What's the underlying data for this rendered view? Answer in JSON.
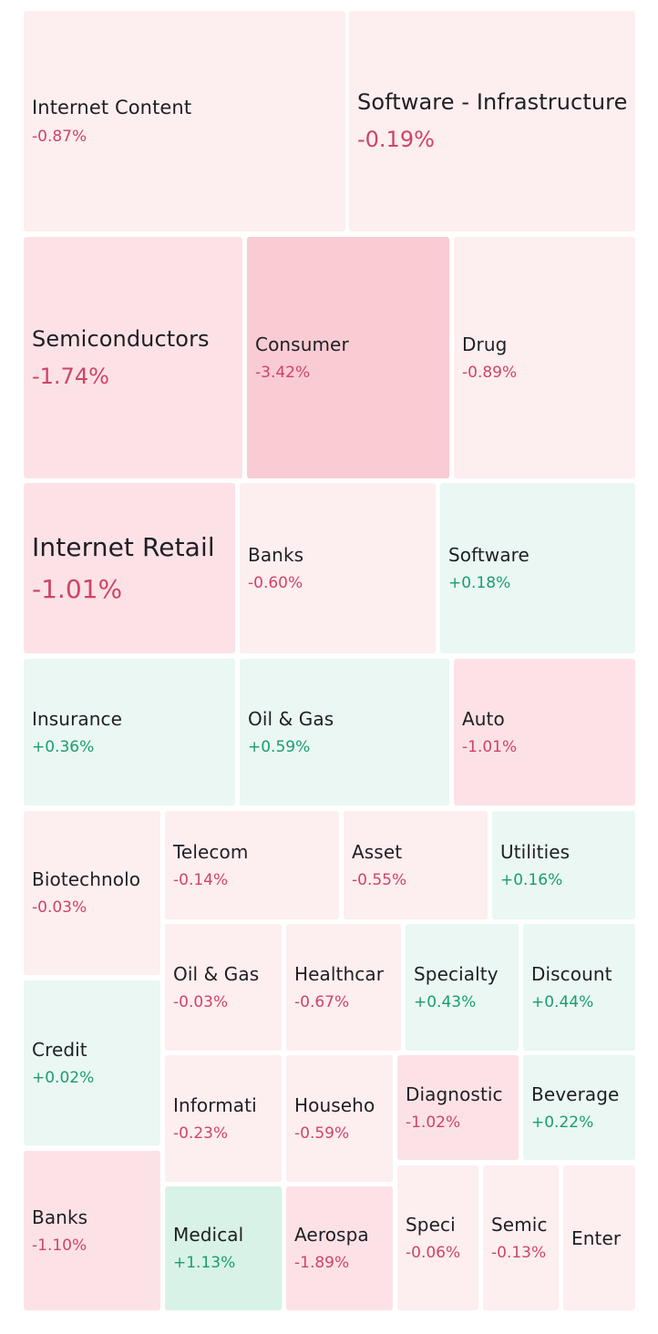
{
  "colors": {
    "neg_light": "#fdeef0",
    "neg_mid": "#fce2e6",
    "neg_strong": "#f9cbd3",
    "pos_light": "#eaf7f2",
    "pos_strong": "#d8f2e7",
    "neg_text": "#cf4466",
    "pos_text": "#1a9d6e"
  },
  "tiles": [
    {
      "label": "Internet Content",
      "change": "-0.87%",
      "trend": "negative",
      "shade": "neg_light"
    },
    {
      "label": "Software - Infrastructure",
      "change": "-0.19%",
      "trend": "negative",
      "shade": "neg_light"
    },
    {
      "label": "Semiconductors",
      "change": "-1.74%",
      "trend": "negative",
      "shade": "neg_mid"
    },
    {
      "label": "Consumer",
      "change": "-3.42%",
      "trend": "negative",
      "shade": "neg_strong"
    },
    {
      "label": "Drug",
      "change": "-0.89%",
      "trend": "negative",
      "shade": "neg_light"
    },
    {
      "label": "Internet Retail",
      "change": "-1.01%",
      "trend": "negative",
      "shade": "neg_mid"
    },
    {
      "label": "Banks",
      "change": "-0.60%",
      "trend": "negative",
      "shade": "neg_light"
    },
    {
      "label": "Software",
      "change": "+0.18%",
      "trend": "positive",
      "shade": "pos_light"
    },
    {
      "label": "Insurance",
      "change": "+0.36%",
      "trend": "positive",
      "shade": "pos_light"
    },
    {
      "label": "Oil & Gas",
      "change": "+0.59%",
      "trend": "positive",
      "shade": "pos_light"
    },
    {
      "label": "Auto",
      "change": "-1.01%",
      "trend": "negative",
      "shade": "neg_mid"
    },
    {
      "label": "Biotechnolo",
      "change": "-0.03%",
      "trend": "negative",
      "shade": "neg_light"
    },
    {
      "label": "Telecom",
      "change": "-0.14%",
      "trend": "negative",
      "shade": "neg_light"
    },
    {
      "label": "Asset",
      "change": "-0.55%",
      "trend": "negative",
      "shade": "neg_light"
    },
    {
      "label": "Utilities",
      "change": "+0.16%",
      "trend": "positive",
      "shade": "pos_light"
    },
    {
      "label": "Oil & Gas",
      "change": "-0.03%",
      "trend": "negative",
      "shade": "neg_light"
    },
    {
      "label": "Healthcar",
      "change": "-0.67%",
      "trend": "negative",
      "shade": "neg_light"
    },
    {
      "label": "Specialty",
      "change": "+0.43%",
      "trend": "positive",
      "shade": "pos_light"
    },
    {
      "label": "Discount",
      "change": "+0.44%",
      "trend": "positive",
      "shade": "pos_light"
    },
    {
      "label": "Credit",
      "change": "+0.02%",
      "trend": "positive",
      "shade": "pos_light"
    },
    {
      "label": "Informati",
      "change": "-0.23%",
      "trend": "negative",
      "shade": "neg_light"
    },
    {
      "label": "Househo",
      "change": "-0.59%",
      "trend": "negative",
      "shade": "neg_light"
    },
    {
      "label": "Diagnostic",
      "change": "-1.02%",
      "trend": "negative",
      "shade": "neg_mid"
    },
    {
      "label": "Beverage",
      "change": "+0.22%",
      "trend": "positive",
      "shade": "pos_light"
    },
    {
      "label": "Banks",
      "change": "-1.10%",
      "trend": "negative",
      "shade": "neg_mid"
    },
    {
      "label": "Medical",
      "change": "+1.13%",
      "trend": "positive",
      "shade": "pos_strong"
    },
    {
      "label": "Aerospa",
      "change": "-1.89%",
      "trend": "negative",
      "shade": "neg_mid"
    },
    {
      "label": "Speci",
      "change": "-0.06%",
      "trend": "negative",
      "shade": "neg_light"
    },
    {
      "label": "Semic",
      "change": "-0.13%",
      "trend": "negative",
      "shade": "neg_light"
    },
    {
      "label": "Enter",
      "change": "",
      "trend": "negative",
      "shade": "neg_light"
    }
  ]
}
